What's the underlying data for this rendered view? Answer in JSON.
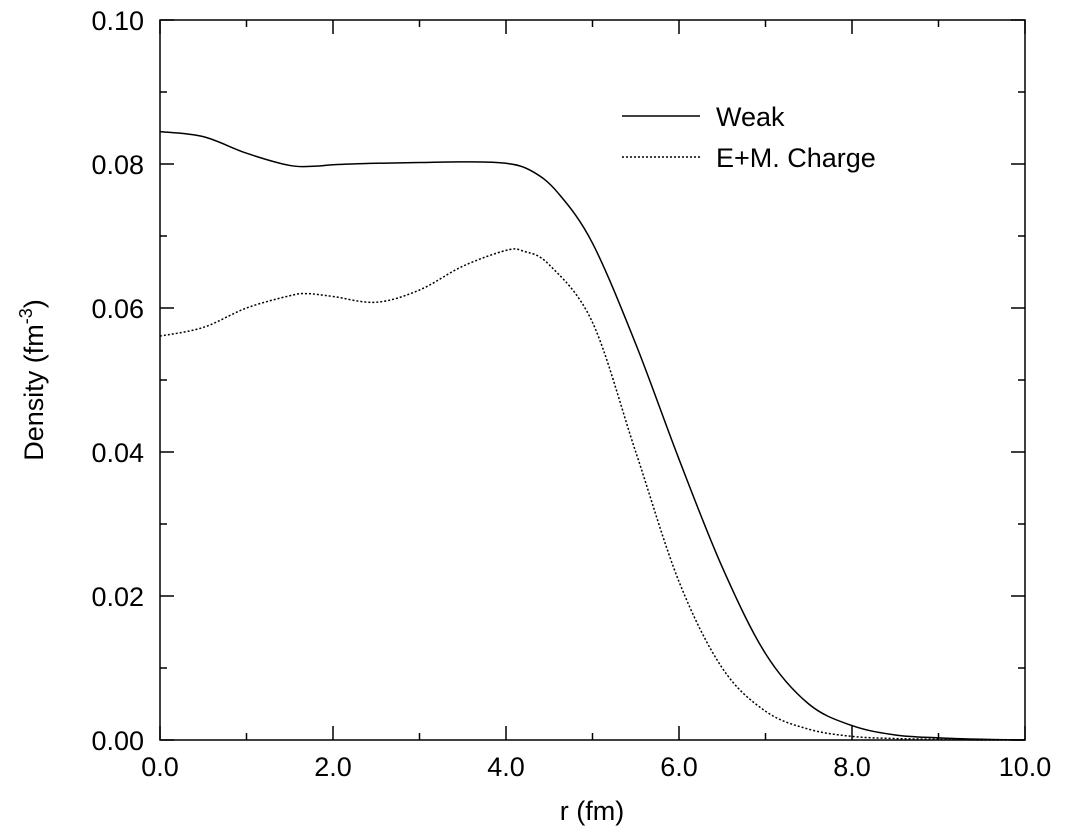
{
  "chart_data": {
    "type": "line",
    "xlabel": "r (fm)",
    "ylabel": "Density (fm",
    "ylabel_superscript": "-3",
    "ylabel_suffix": ")",
    "xlim": [
      0.0,
      10.0
    ],
    "ylim": [
      0.0,
      0.1
    ],
    "xticks": [
      "0.0",
      "2.0",
      "4.0",
      "6.0",
      "8.0",
      "10.0"
    ],
    "yticks": [
      "0.00",
      "0.02",
      "0.04",
      "0.06",
      "0.08",
      "0.10"
    ],
    "grid": false,
    "legend_position": "top-right",
    "series": [
      {
        "name": "Weak",
        "style": "solid",
        "color": "#000000",
        "x": [
          0.0,
          0.5,
          1.0,
          1.5,
          1.8,
          2.0,
          2.5,
          3.0,
          3.5,
          4.0,
          4.3,
          4.6,
          5.0,
          5.5,
          6.0,
          6.5,
          7.0,
          7.5,
          8.0,
          8.5,
          9.0,
          9.5,
          10.0
        ],
        "y": [
          0.0845,
          0.0838,
          0.0815,
          0.0798,
          0.0797,
          0.0799,
          0.0801,
          0.0802,
          0.0803,
          0.0801,
          0.079,
          0.076,
          0.069,
          0.055,
          0.039,
          0.024,
          0.012,
          0.005,
          0.002,
          0.0007,
          0.0003,
          0.0001,
          0.0
        ]
      },
      {
        "name": "E+M. Charge",
        "style": "dotted",
        "color": "#000000",
        "x": [
          0.0,
          0.5,
          1.0,
          1.5,
          1.7,
          2.0,
          2.5,
          3.0,
          3.5,
          4.0,
          4.2,
          4.5,
          5.0,
          5.5,
          6.0,
          6.5,
          7.0,
          7.5,
          8.0,
          8.5,
          9.0,
          9.5,
          10.0
        ],
        "y": [
          0.0561,
          0.0573,
          0.06,
          0.0617,
          0.062,
          0.0616,
          0.0608,
          0.0625,
          0.0658,
          0.068,
          0.0679,
          0.066,
          0.058,
          0.04,
          0.022,
          0.01,
          0.004,
          0.0015,
          0.0005,
          0.0002,
          0.0001,
          0.0,
          0.0
        ]
      }
    ]
  }
}
